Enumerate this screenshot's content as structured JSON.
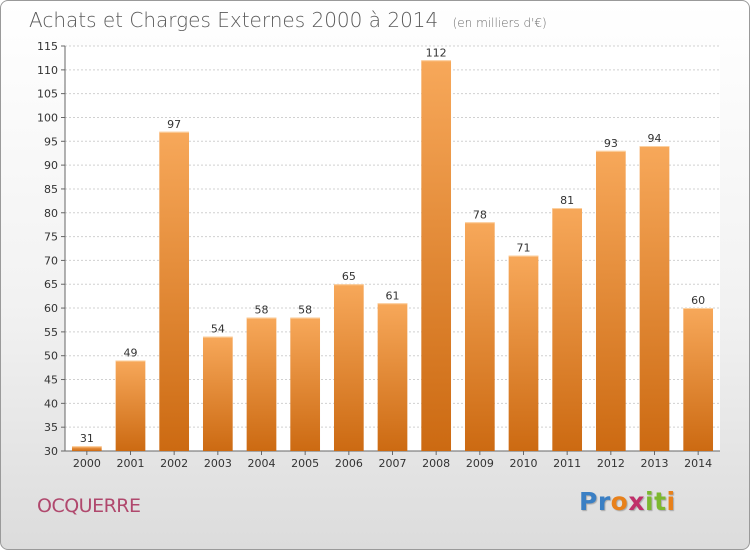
{
  "title": "Achats et Charges Externes 2000 à 2014",
  "subtitle": "(en milliers d'€)",
  "commune": "OCQUERRE",
  "brand": {
    "letters": [
      "P",
      "r",
      "o",
      "x",
      "i",
      "t",
      "i"
    ],
    "colors": [
      "#3a7fc4",
      "#3a7fc4",
      "#e8801a",
      "#c02f6a",
      "#7cb82f",
      "#7cb82f",
      "#e8801a"
    ]
  },
  "colors": {
    "bar_top": "#f7a85a",
    "bar_bottom": "#cc6a12",
    "title": "#5a5a5a",
    "commune": "#b0486d"
  },
  "chart_data": {
    "type": "bar",
    "title": "Achats et Charges Externes 2000 à 2014",
    "subtitle": "(en milliers d'€)",
    "categories": [
      "2000",
      "2001",
      "2002",
      "2003",
      "2004",
      "2005",
      "2006",
      "2007",
      "2008",
      "2009",
      "2010",
      "2011",
      "2012",
      "2013",
      "2014"
    ],
    "values": [
      31,
      49,
      97,
      54,
      58,
      58,
      65,
      61,
      112,
      78,
      71,
      81,
      93,
      94,
      60
    ],
    "data_labels": [
      "31",
      "49",
      "97",
      "54",
      "58",
      "58",
      "65",
      "61",
      "112",
      "78",
      "71",
      "81",
      "93",
      "94",
      "60"
    ],
    "ylim": [
      30,
      115
    ],
    "yticks": [
      30,
      35,
      40,
      45,
      50,
      55,
      60,
      65,
      70,
      75,
      80,
      85,
      90,
      95,
      100,
      105,
      110,
      115
    ],
    "grid": true,
    "xlabel": "",
    "ylabel": ""
  }
}
